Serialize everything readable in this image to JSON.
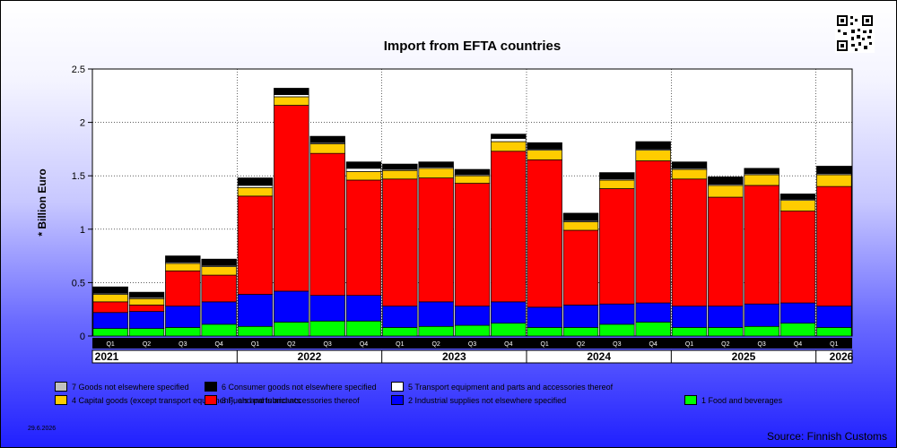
{
  "chart_data": {
    "type": "bar",
    "stacked": true,
    "title": "Import from EFTA countries",
    "xlabel": "",
    "ylabel": "* Billion Euro",
    "ylim": [
      0,
      2.5
    ],
    "yticks": [
      "0",
      "0.5",
      "1",
      "1.5",
      "2",
      "2.5"
    ],
    "grid": true,
    "categories": [
      "Q1",
      "Q2",
      "Q3",
      "Q4",
      "Q1",
      "Q2",
      "Q3",
      "Q4",
      "Q1",
      "Q2",
      "Q3",
      "Q4",
      "Q1",
      "Q2",
      "Q3",
      "Q4",
      "Q1",
      "Q2",
      "Q3",
      "Q4",
      "Q1"
    ],
    "years": [
      "2021",
      "2022",
      "2023",
      "2024",
      "2025",
      "2026"
    ],
    "year_spans": [
      4,
      4,
      4,
      4,
      4,
      1
    ],
    "series": [
      {
        "name": "1 Food and beverages",
        "color": "#00ff00",
        "values": [
          0.07,
          0.07,
          0.08,
          0.11,
          0.09,
          0.13,
          0.14,
          0.14,
          0.08,
          0.09,
          0.1,
          0.12,
          0.08,
          0.08,
          0.11,
          0.13,
          0.08,
          0.08,
          0.09,
          0.12,
          0.08
        ]
      },
      {
        "name": "2 Industrial supplies not elsewhere specified",
        "color": "#0000ff",
        "values": [
          0.15,
          0.16,
          0.2,
          0.21,
          0.3,
          0.29,
          0.24,
          0.24,
          0.2,
          0.23,
          0.18,
          0.2,
          0.19,
          0.21,
          0.19,
          0.18,
          0.2,
          0.2,
          0.21,
          0.19,
          0.2
        ]
      },
      {
        "name": "3 Fuels and lubricants",
        "color": "#ff0000",
        "values": [
          0.1,
          0.06,
          0.33,
          0.25,
          0.92,
          1.74,
          1.33,
          1.08,
          1.19,
          1.16,
          1.15,
          1.41,
          1.38,
          0.7,
          1.08,
          1.33,
          1.19,
          1.02,
          1.11,
          0.86,
          1.12
        ]
      },
      {
        "name": "4 Capital goods (except transport equipment), and parts and accessories thereof",
        "color": "#ffcc00",
        "values": [
          0.07,
          0.06,
          0.07,
          0.08,
          0.08,
          0.08,
          0.09,
          0.08,
          0.08,
          0.09,
          0.07,
          0.09,
          0.09,
          0.08,
          0.08,
          0.1,
          0.09,
          0.11,
          0.1,
          0.1,
          0.11
        ]
      },
      {
        "name": "5  Transport equipment and parts and accessories thereof",
        "color": "#ffffff",
        "values": [
          0.01,
          0.01,
          0.01,
          0.01,
          0.02,
          0.02,
          0.01,
          0.03,
          0.01,
          0.01,
          0.01,
          0.03,
          0.01,
          0.01,
          0.01,
          0.01,
          0.01,
          0.01,
          0.01,
          0.01,
          0.01
        ]
      },
      {
        "name": "6 Consumer goods not elsewhere specified",
        "color": "#000000",
        "values": [
          0.06,
          0.05,
          0.06,
          0.06,
          0.07,
          0.06,
          0.06,
          0.06,
          0.05,
          0.05,
          0.05,
          0.04,
          0.06,
          0.07,
          0.06,
          0.07,
          0.06,
          0.07,
          0.05,
          0.05,
          0.07
        ]
      },
      {
        "name": "7 Goods not elsewhere specified",
        "color": "#c0c0c0",
        "values": [
          0,
          0,
          0,
          0,
          0,
          0,
          0,
          0,
          0,
          0,
          0,
          0,
          0,
          0,
          0,
          0,
          0,
          0,
          0,
          0,
          0
        ]
      }
    ]
  },
  "page": {
    "date": "29.6.2026",
    "source": "Source: Finnish Customs"
  },
  "legend_rows": [
    [
      {
        "series": 6
      },
      {
        "series": 5
      },
      {
        "series": 4
      }
    ],
    [
      {
        "series": 3
      },
      {
        "series": 2
      },
      {
        "series": 1
      },
      {
        "series": 0
      }
    ]
  ]
}
